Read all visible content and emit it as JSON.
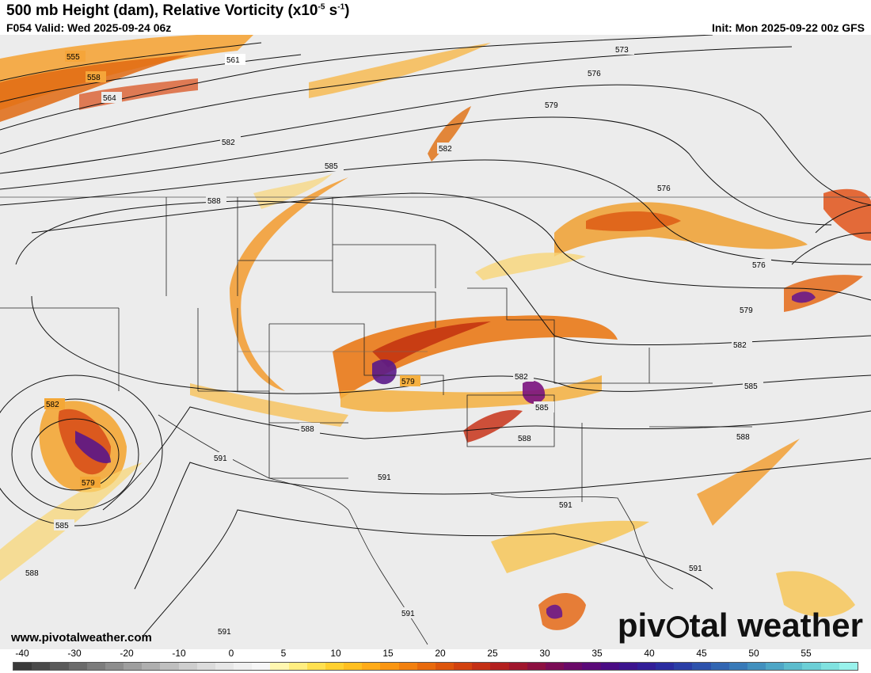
{
  "header": {
    "title_main": "500 mb Height (dam), Relative Vorticity (x10",
    "title_exp": "-5",
    "title_mid": " s",
    "title_exp2": "-1",
    "title_end": ")",
    "valid": "F054 Valid: Wed 2025-09-24 06z",
    "init": "Init: Mon 2025-09-22 00z GFS"
  },
  "footer": {
    "website": "www.pivotalweather.com",
    "brand_part1": "piv",
    "brand_part2": "tal weather"
  },
  "contour_labels": {
    "l555": "555",
    "l558": "558",
    "l561": "561",
    "l564": "564",
    "l573": "573",
    "l576a": "576",
    "l576b": "576",
    "l576c": "576",
    "l579a": "579",
    "l579b": "579",
    "l579c": "579",
    "l579d": "579",
    "l582a": "582",
    "l582b": "582",
    "l582c": "582",
    "l582d": "582",
    "l582e": "582",
    "l585a": "585",
    "l585b": "585",
    "l585c": "585",
    "l585d": "585",
    "l588a": "588",
    "l588b": "588",
    "l588c": "588",
    "l588d": "588",
    "l588e": "588",
    "l591a": "591",
    "l591b": "591",
    "l591c": "591",
    "l591d": "591",
    "l591e": "591",
    "l591f": "591"
  },
  "colorbar": {
    "ticks": [
      "-40",
      "-30",
      "-20",
      "-10",
      "0",
      "5",
      "10",
      "15",
      "20",
      "25",
      "30",
      "35",
      "40",
      "45",
      "50",
      "55"
    ],
    "colors": [
      "#3a3a3a",
      "#4a4a4a",
      "#5a5a5a",
      "#6b6b6b",
      "#7c7c7c",
      "#8d8d8d",
      "#9e9e9e",
      "#afafaf",
      "#bfbfbf",
      "#cecece",
      "#dcdcdc",
      "#e7e7e7",
      "#f0f0f0",
      "#f7f7f7",
      "#fff7b0",
      "#ffee80",
      "#ffe050",
      "#ffd030",
      "#ffbf20",
      "#ffab18",
      "#fa9612",
      "#f2800f",
      "#e86a0d",
      "#dd550c",
      "#d2420f",
      "#c43015",
      "#b3201f",
      "#a0162d",
      "#8c1040",
      "#7a0c55",
      "#6a0a68",
      "#5a0a78",
      "#4a0c84",
      "#3c148e",
      "#321e98",
      "#2a2ca0",
      "#2a3ea6",
      "#2d52ac",
      "#3266b2",
      "#397ab8",
      "#4290be",
      "#4ea6c6",
      "#5cbccd",
      "#6ccfd6",
      "#80e2e0",
      "#98f2ec"
    ]
  }
}
